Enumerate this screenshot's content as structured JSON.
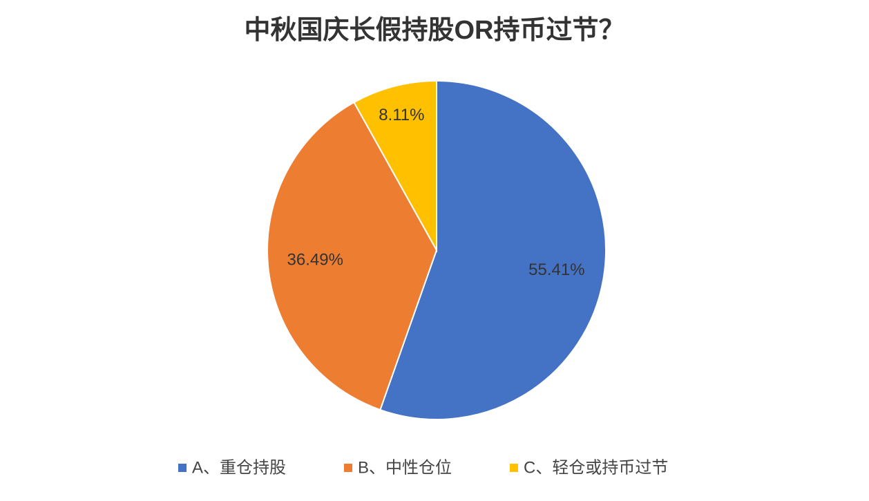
{
  "chart_data": {
    "type": "pie",
    "title": "中秋国庆长假持股OR持币过节？",
    "categories": [
      "A、重仓持股",
      "B、中性仓位",
      "C、轻仓或持币过节"
    ],
    "values": [
      55.41,
      36.49,
      8.11
    ],
    "value_labels": [
      "55.41%",
      "36.49%",
      "8.11%"
    ],
    "colors": [
      "#4472c4",
      "#ed7d31",
      "#ffc000"
    ]
  }
}
